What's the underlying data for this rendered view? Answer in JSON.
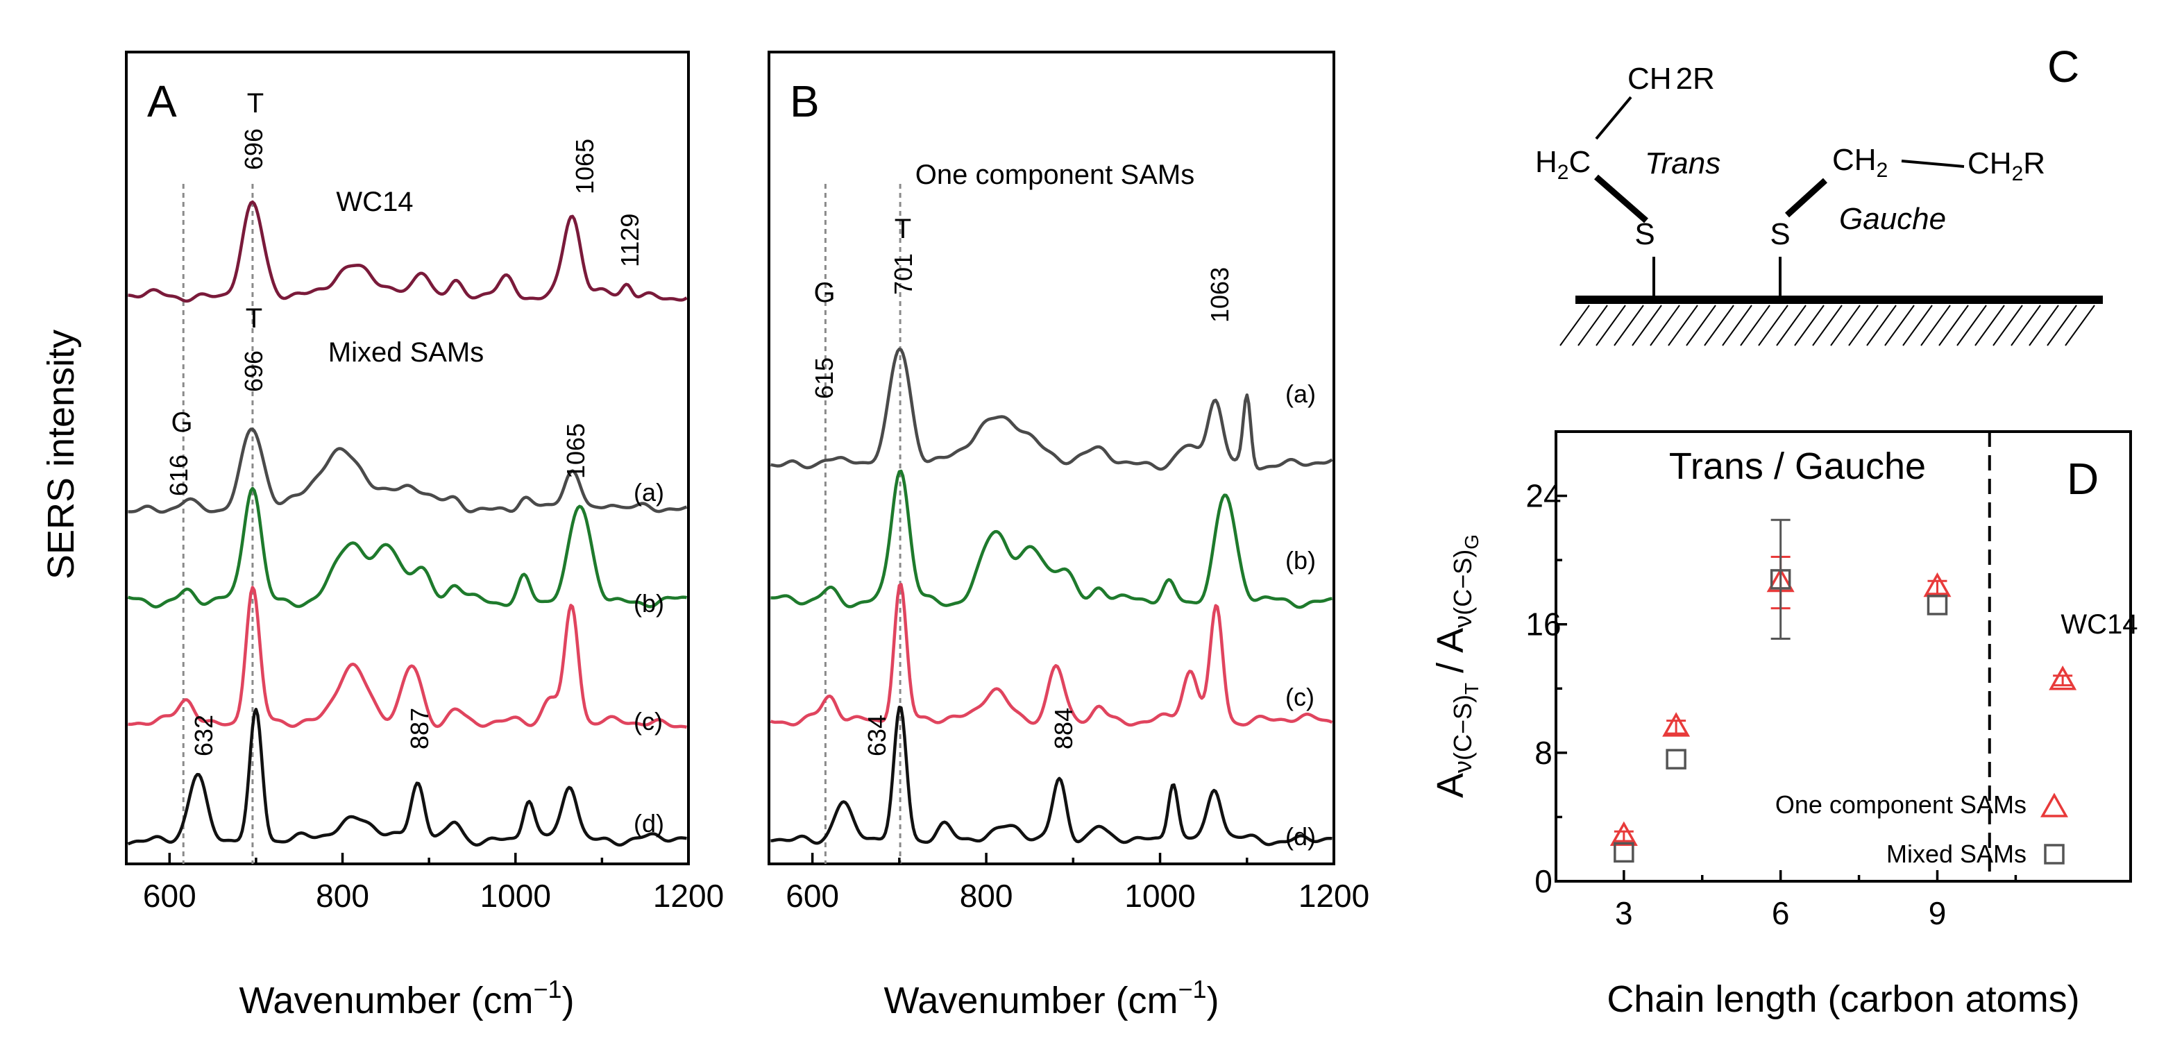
{
  "figure": {
    "panel_a_letter": "A",
    "panel_b_letter": "B",
    "panel_c_letter": "C",
    "panel_d_letter": "D"
  },
  "colors": {
    "wc14": "#7a1a3a",
    "a": "#4a4a4a",
    "b": "#1e7a2c",
    "c": "#e0445e",
    "d": "#111111",
    "triangle": "#e83a3a",
    "square": "#555555"
  },
  "chart_data": [
    {
      "type": "line",
      "panel": "A",
      "xlabel_main": "Wavenumber (cm",
      "xlabel_sup": "−1",
      "xlabel_close": ")",
      "ylabel": "SERS intensity",
      "xlim": [
        550,
        1200
      ],
      "xticks": [
        600,
        800,
        1000,
        1200
      ],
      "xtick_labels": [
        "600",
        "800",
        "1000",
        "1200"
      ],
      "guides": [
        616,
        696
      ],
      "section_labels": {
        "top": "WC14",
        "mixed": "Mixed SAMs"
      },
      "series": [
        {
          "name": "WC14",
          "label": "",
          "color_key": "wc14",
          "baseline": 18.5,
          "peaks": [
            [
              696,
              2.9,
              17
            ],
            [
              812,
              0.9,
              35
            ],
            [
              893,
              0.9,
              13
            ],
            [
              930,
              0.4,
              10
            ],
            [
              990,
              0.5,
              12
            ],
            [
              1065,
              2.7,
              14
            ],
            [
              1129,
              0.4,
              8
            ]
          ]
        },
        {
          "name": "(a)",
          "label": "(a)",
          "color_key": "a",
          "baseline": 11.5,
          "peaks": [
            [
              620,
              0.2,
              10
            ],
            [
              696,
              2.7,
              18
            ],
            [
              800,
              1.9,
              40
            ],
            [
              880,
              0.7,
              25
            ],
            [
              930,
              0.4,
              15
            ],
            [
              1010,
              0.3,
              10
            ],
            [
              1065,
              1.3,
              14
            ],
            [
              1110,
              0.3,
              10
            ]
          ]
        },
        {
          "name": "(b)",
          "label": "(b)",
          "color_key": "b",
          "baseline": 8.5,
          "peaks": [
            [
              620,
              0.35,
              12
            ],
            [
              696,
              3.8,
              14
            ],
            [
              810,
              1.9,
              25
            ],
            [
              855,
              1.8,
              20
            ],
            [
              890,
              1.0,
              15
            ],
            [
              930,
              0.5,
              12
            ],
            [
              1010,
              0.8,
              10
            ],
            [
              1075,
              3.0,
              18
            ]
          ]
        },
        {
          "name": "(c)",
          "label": "(c)",
          "color_key": "c",
          "baseline": 4.5,
          "peaks": [
            [
              620,
              0.8,
              14
            ],
            [
              696,
              4.4,
              11
            ],
            [
              810,
              1.9,
              25
            ],
            [
              880,
              1.8,
              16
            ],
            [
              930,
              0.5,
              12
            ],
            [
              1040,
              0.9,
              12
            ],
            [
              1065,
              3.9,
              11
            ]
          ]
        },
        {
          "name": "(d)",
          "label": "(d)",
          "color_key": "d",
          "baseline": 0.7,
          "peaks": [
            [
              632,
              2.0,
              14
            ],
            [
              700,
              4.2,
              10
            ],
            [
              820,
              0.7,
              30
            ],
            [
              887,
              1.8,
              11
            ],
            [
              930,
              0.5,
              10
            ],
            [
              1015,
              1.3,
              9
            ],
            [
              1063,
              1.8,
              12
            ]
          ]
        }
      ],
      "annotations": [
        {
          "text": "T",
          "x": 696,
          "kind": "letter"
        },
        {
          "text": "696",
          "x": 696,
          "kind": "rot"
        },
        {
          "text": "1065",
          "x": 1065,
          "kind": "rot"
        },
        {
          "text": "1129",
          "x": 1129,
          "kind": "rot"
        },
        {
          "text": "T",
          "x": 696,
          "kind": "letter"
        },
        {
          "text": "696",
          "x": 696,
          "kind": "rot"
        },
        {
          "text": "G",
          "x": 616,
          "kind": "letter"
        },
        {
          "text": "616",
          "x": 616,
          "kind": "rot"
        },
        {
          "text": "1065",
          "x": 1065,
          "kind": "rot"
        },
        {
          "text": "632",
          "x": 632,
          "kind": "rot"
        },
        {
          "text": "887",
          "x": 887,
          "kind": "rot"
        }
      ]
    },
    {
      "type": "line",
      "panel": "B",
      "xlabel_main": "Wavenumber (cm",
      "xlabel_sup": "−1",
      "xlabel_close": ")",
      "xlim": [
        550,
        1200
      ],
      "xticks": [
        600,
        800,
        1000,
        1200
      ],
      "xtick_labels": [
        "600",
        "800",
        "1000",
        "1200"
      ],
      "guides": [
        615,
        701
      ],
      "section_labels": {
        "top": "One component SAMs"
      },
      "series": [
        {
          "name": "(a)",
          "label": "(a)",
          "color_key": "a",
          "baseline": 13.0,
          "peaks": [
            [
              615,
              0.2,
              10
            ],
            [
              701,
              3.8,
              17
            ],
            [
              820,
              1.5,
              45
            ],
            [
              930,
              0.4,
              20
            ],
            [
              1030,
              0.5,
              15
            ],
            [
              1063,
              2.1,
              12
            ],
            [
              1100,
              2.2,
              6
            ]
          ]
        },
        {
          "name": "(b)",
          "label": "(b)",
          "color_key": "b",
          "baseline": 8.5,
          "peaks": [
            [
              620,
              0.4,
              12
            ],
            [
              701,
              4.3,
              14
            ],
            [
              810,
              2.3,
              22
            ],
            [
              855,
              1.6,
              22
            ],
            [
              890,
              1.0,
              15
            ],
            [
              930,
              0.5,
              12
            ],
            [
              1010,
              0.6,
              10
            ],
            [
              1075,
              3.4,
              17
            ]
          ]
        },
        {
          "name": "(c)",
          "label": "(c)",
          "color_key": "c",
          "baseline": 4.6,
          "peaks": [
            [
              620,
              0.7,
              12
            ],
            [
              701,
              4.5,
              10
            ],
            [
              810,
              1.1,
              20
            ],
            [
              880,
              1.7,
              12
            ],
            [
              930,
              0.5,
              10
            ],
            [
              1035,
              1.6,
              12
            ],
            [
              1065,
              3.7,
              10
            ]
          ]
        },
        {
          "name": "(d)",
          "label": "(d)",
          "color_key": "d",
          "baseline": 0.7,
          "peaks": [
            [
              634,
              1.2,
              14
            ],
            [
              701,
              4.2,
              10
            ],
            [
              750,
              0.5,
              12
            ],
            [
              830,
              0.4,
              20
            ],
            [
              884,
              2.0,
              11
            ],
            [
              930,
              0.3,
              10
            ],
            [
              1015,
              2.0,
              8
            ],
            [
              1063,
              1.6,
              11
            ]
          ]
        }
      ],
      "annotations": [
        {
          "text": "T",
          "x": 701,
          "kind": "letter"
        },
        {
          "text": "701",
          "x": 701,
          "kind": "rot"
        },
        {
          "text": "1063",
          "x": 1063,
          "kind": "rot"
        },
        {
          "text": "G",
          "x": 615,
          "kind": "letter"
        },
        {
          "text": "615",
          "x": 615,
          "kind": "rot"
        },
        {
          "text": "634",
          "x": 634,
          "kind": "rot"
        },
        {
          "text": "884",
          "x": 884,
          "kind": "rot"
        }
      ]
    },
    {
      "type": "scatter",
      "panel": "D",
      "title": "Trans / Gauche",
      "xlabel": "Chain length (carbon atoms)",
      "ylabel": "A_ν(C−S)T / A_ν(C−S)G",
      "ylabel_parts": {
        "a": "A",
        "sub1": "ν(C−S)",
        "sub1b": "T",
        "slash": "/",
        "sub2": "ν(C−S)",
        "sub2b": "G"
      },
      "xlim": [
        1.7,
        12.7
      ],
      "ylim": [
        0,
        28
      ],
      "xticks": [
        3,
        6,
        9
      ],
      "xtick_labels": [
        "3",
        "6",
        "9"
      ],
      "yticks": [
        0,
        8,
        16,
        24
      ],
      "ytick_labels": [
        "0",
        "8",
        "16",
        "24"
      ],
      "divider_x": 10,
      "wc14_label": "WC14",
      "legend": {
        "triangle": "One component SAMs",
        "square": "Mixed SAMs"
      },
      "series": [
        {
          "name": "One component SAMs",
          "marker": "triangle",
          "color_key": "triangle",
          "points": [
            {
              "x": 3,
              "y": 2.8,
              "err": 0.3
            },
            {
              "x": 4,
              "y": 9.6,
              "err": 0.4
            },
            {
              "x": 6,
              "y": 18.6,
              "err": 1.6
            },
            {
              "x": 9,
              "y": 18.3,
              "err": 0.4
            },
            {
              "x": 11.4,
              "y": 12.5,
              "err": 0.3
            }
          ]
        },
        {
          "name": "Mixed SAMs",
          "marker": "square",
          "color_key": "square",
          "points": [
            {
              "x": 3,
              "y": 1.8,
              "err": 0
            },
            {
              "x": 4,
              "y": 7.6,
              "err": 0
            },
            {
              "x": 6,
              "y": 18.8,
              "err": 3.7
            },
            {
              "x": 9,
              "y": 17.2,
              "err": 0
            }
          ]
        }
      ]
    }
  ],
  "diagram_c": {
    "ch2r_top": "CH",
    "ch2r_top_sub": "2",
    "ch2r_top_r": "R",
    "h2c_h": "H",
    "h2c_sub": "2",
    "h2c_c": "C",
    "trans": "Trans",
    "gauche": "Gauche",
    "s_left": "S",
    "s_right": "S",
    "ch2_mid": "CH",
    "ch2_mid_sub": "2",
    "ch2r_right": "CH",
    "ch2r_right_sub": "2",
    "ch2r_right_r": "R"
  }
}
